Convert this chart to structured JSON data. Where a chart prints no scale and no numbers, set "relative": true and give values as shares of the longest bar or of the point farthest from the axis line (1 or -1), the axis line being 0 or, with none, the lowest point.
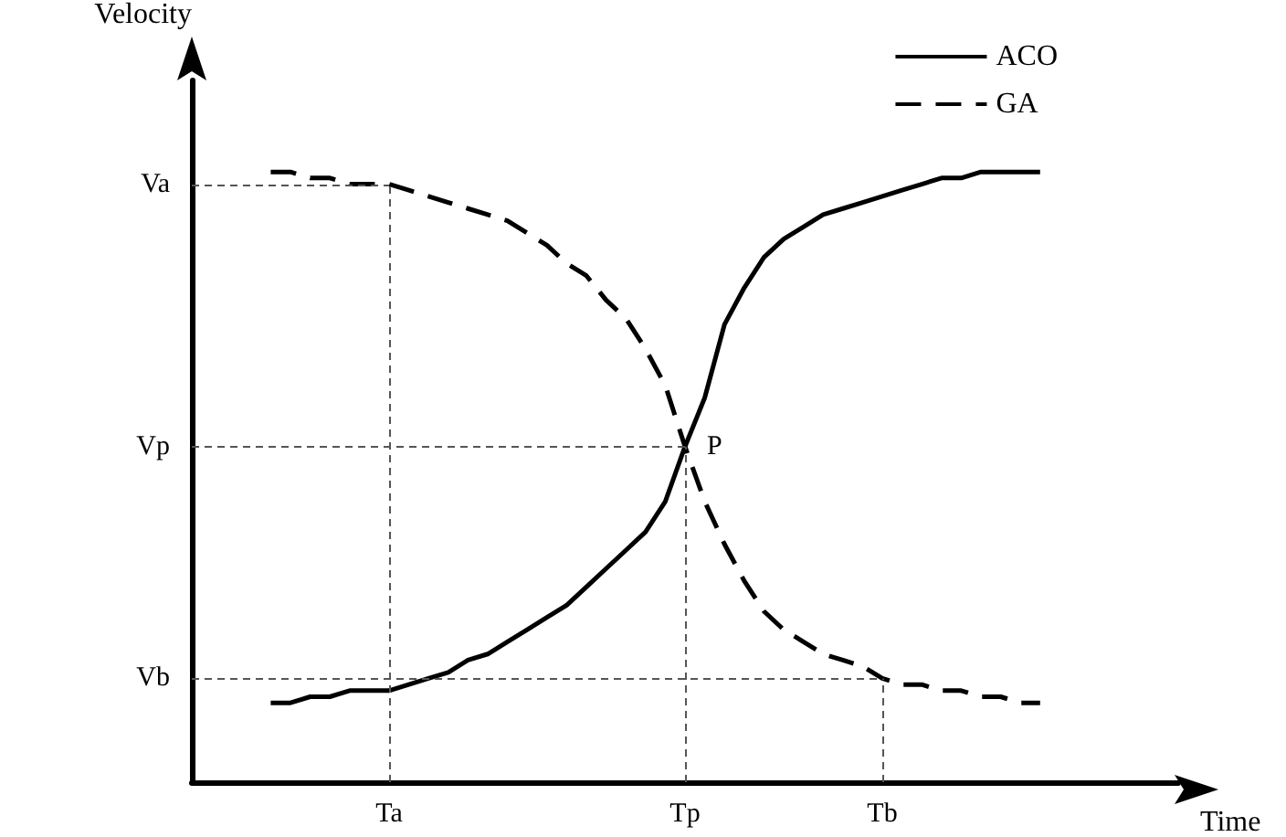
{
  "chart_data": {
    "type": "line",
    "relative": true,
    "xlabel": "Time",
    "ylabel": "Velocity",
    "categories": [
      null,
      null,
      null,
      null,
      null,
      null,
      null,
      null,
      null,
      null,
      "Ta",
      null,
      null,
      null,
      null,
      null,
      null,
      null,
      null,
      null,
      null,
      null,
      null,
      null,
      null,
      "Tp",
      null,
      null,
      null,
      null,
      null,
      null,
      null,
      null,
      null,
      "Tb",
      null,
      null,
      null,
      null,
      null,
      null,
      null,
      null,
      null,
      null,
      null,
      null,
      null,
      null,
      null
    ],
    "series": [
      {
        "name": "ACO",
        "color": "#000000",
        "line_style": "solid",
        "values": [
          null,
          null,
          null,
          null,
          0.13,
          0.13,
          0.14,
          0.14,
          0.15,
          0.15,
          0.15,
          0.16,
          0.17,
          0.18,
          0.2,
          0.21,
          0.23,
          0.25,
          0.27,
          0.29,
          0.32,
          0.35,
          0.38,
          0.41,
          0.46,
          0.55,
          0.63,
          0.75,
          0.81,
          0.86,
          0.89,
          0.91,
          0.93,
          0.94,
          0.95,
          0.96,
          0.97,
          0.98,
          0.99,
          0.99,
          1,
          1,
          1,
          1,
          null,
          null,
          null,
          null,
          null,
          null,
          null
        ]
      },
      {
        "name": "GA",
        "color": "#000000",
        "line_style": "dashed",
        "values": [
          null,
          null,
          null,
          null,
          1,
          1,
          0.99,
          0.99,
          0.98,
          0.98,
          0.98,
          0.97,
          0.96,
          0.95,
          0.94,
          0.93,
          0.92,
          0.9,
          0.88,
          0.85,
          0.83,
          0.79,
          0.76,
          0.71,
          0.65,
          0.55,
          0.46,
          0.39,
          0.33,
          0.28,
          0.25,
          0.23,
          0.21,
          0.2,
          0.19,
          0.17,
          0.16,
          0.16,
          0.15,
          0.15,
          0.14,
          0.14,
          0.13,
          0.13,
          null,
          null,
          null,
          null,
          null,
          null,
          null
        ]
      }
    ],
    "ref_lines": [
      {
        "axis": "y",
        "value": 0.98,
        "label": "Va",
        "color": "#555555",
        "line_style": "dashed"
      },
      {
        "axis": "y",
        "value": 0.55,
        "label": "Vp",
        "color": "#555555",
        "line_style": "dashed"
      },
      {
        "axis": "y",
        "value": 0.17,
        "label": "Vb",
        "color": "#555555",
        "line_style": "dashed"
      },
      {
        "axis": "x",
        "value": "Ta",
        "color": "#555555",
        "line_style": "dashed"
      },
      {
        "axis": "x",
        "value": "Tp",
        "color": "#555555",
        "line_style": "dashed"
      },
      {
        "axis": "x",
        "value": "Tb",
        "color": "#555555",
        "line_style": "dashed"
      }
    ],
    "annotations": [
      "P"
    ],
    "legend": "top right",
    "grid": false,
    "marker": "none"
  }
}
